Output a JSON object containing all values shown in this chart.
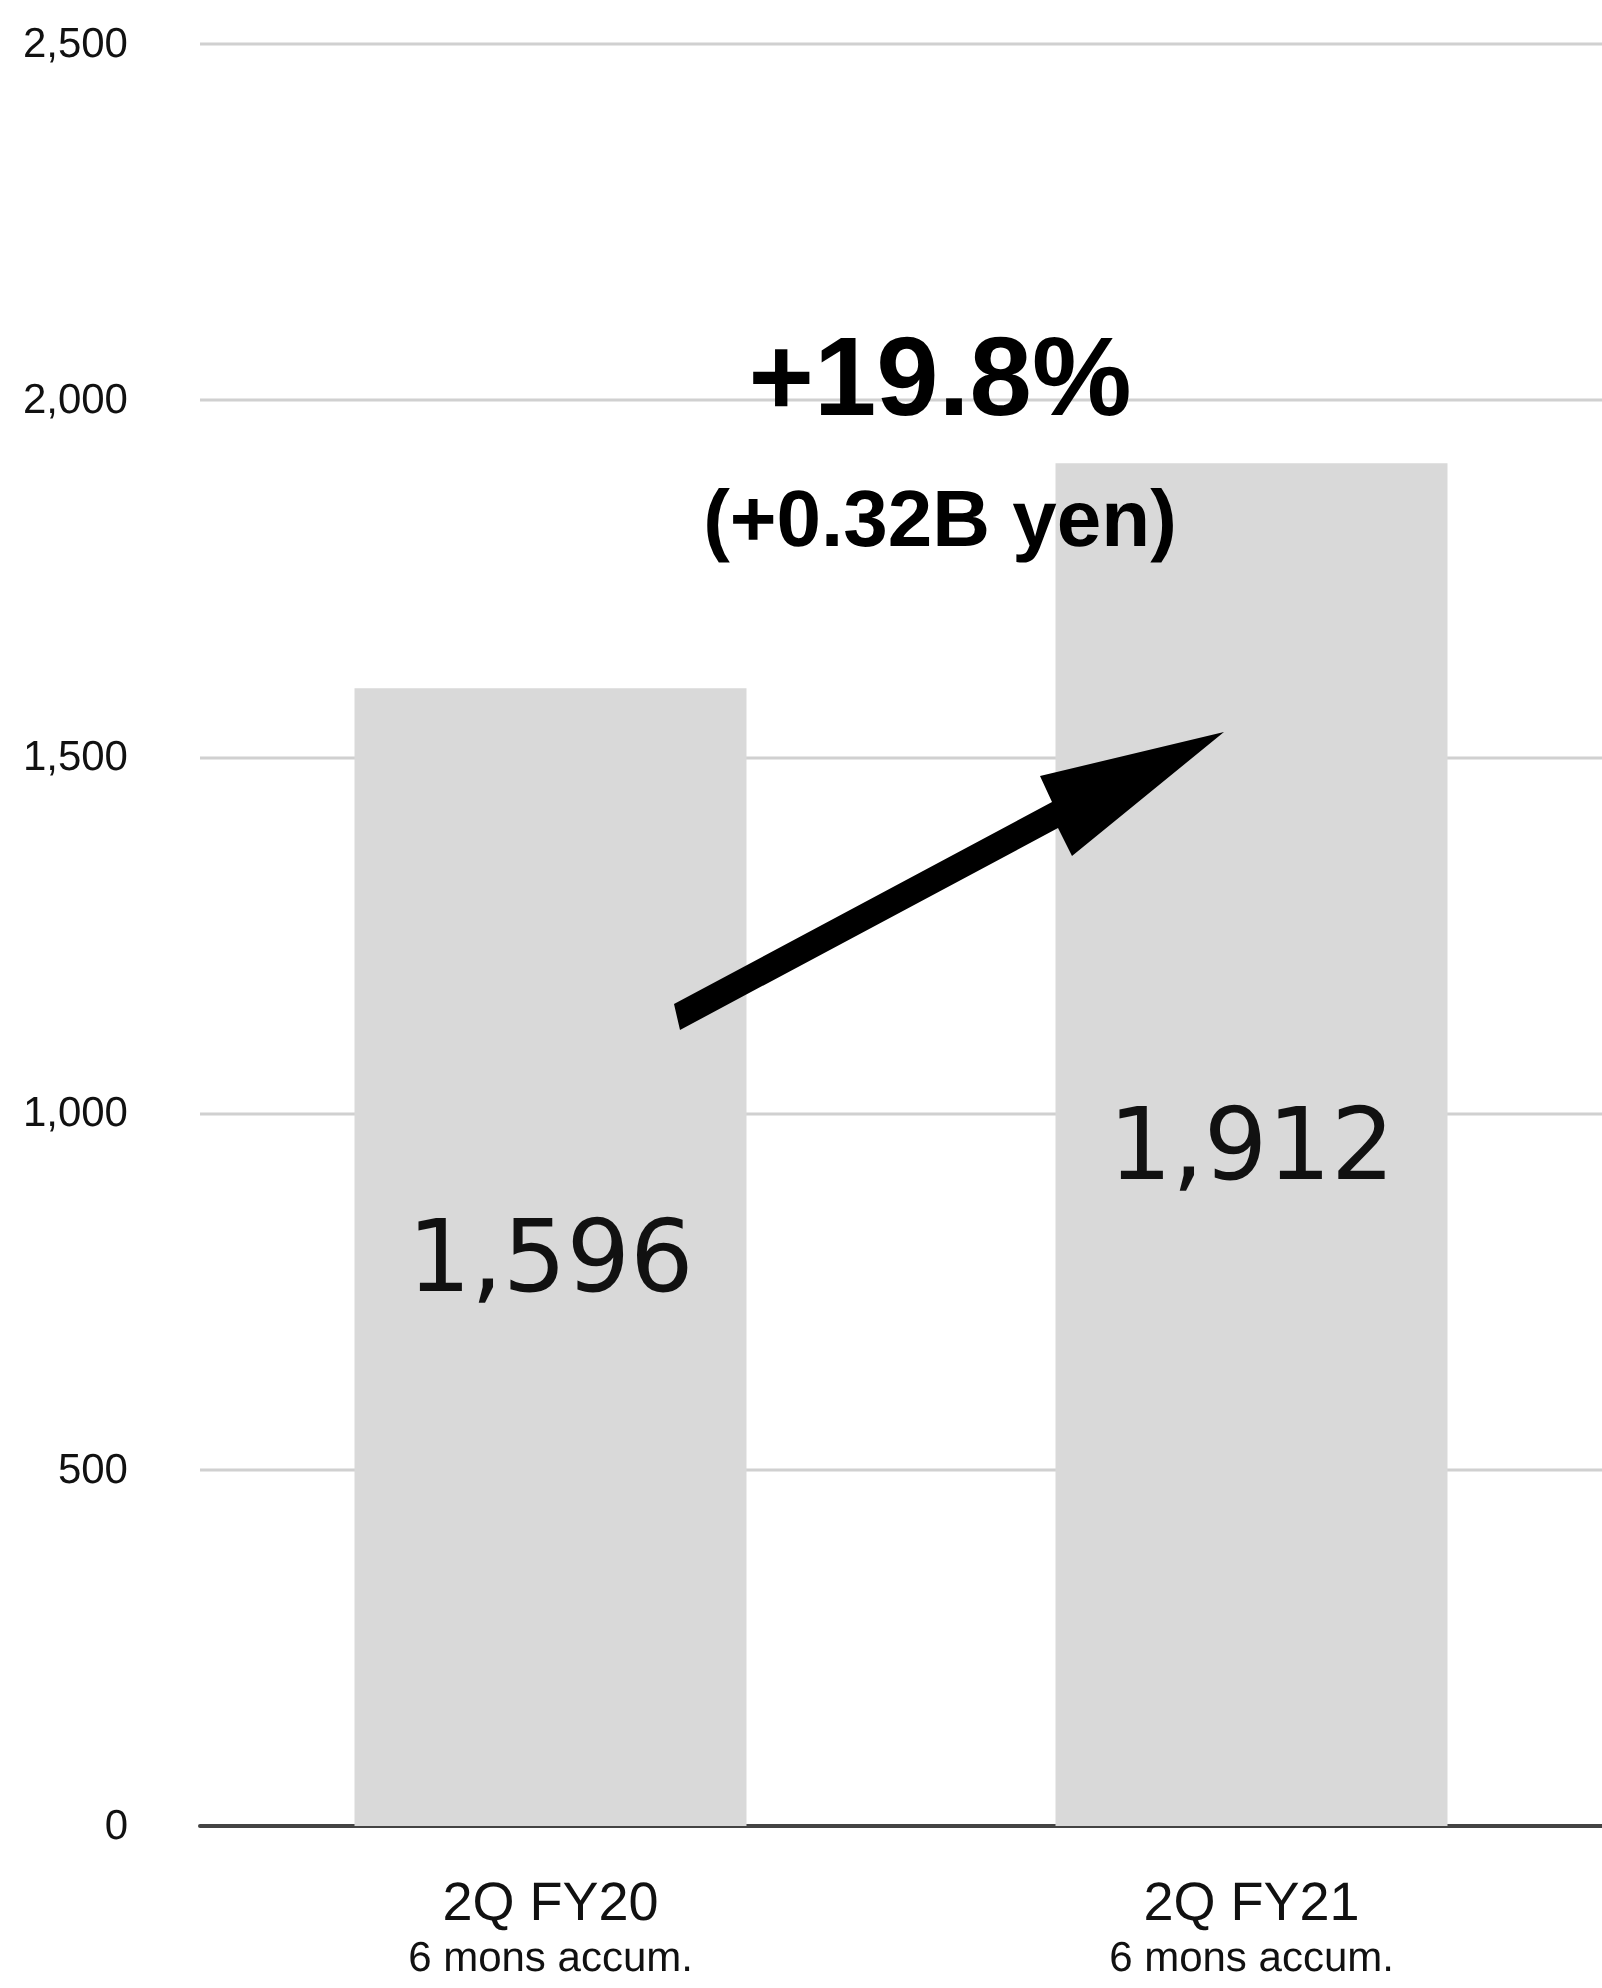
{
  "chart_data": {
    "type": "bar",
    "categories": [
      "2Q FY20\n6 mons accum.",
      "2Q FY21\n6 mons accum."
    ],
    "values": [
      1596,
      1912
    ],
    "color": "#d9d9d9",
    "value_labels": [
      "1,596",
      "1,912"
    ],
    "ylim": [
      0,
      2500
    ],
    "yticks": [
      {
        "value": 0,
        "label": "0"
      },
      {
        "value": 500,
        "label": "500"
      },
      {
        "value": 1000,
        "label": "1,000"
      },
      {
        "value": 1500,
        "label": "1,500"
      },
      {
        "value": 2000,
        "label": "2,000"
      },
      {
        "value": 2500,
        "label": "2,500"
      }
    ],
    "grid": "y",
    "annotations": [
      "+19.8%",
      "(+0.32B yen)"
    ]
  }
}
